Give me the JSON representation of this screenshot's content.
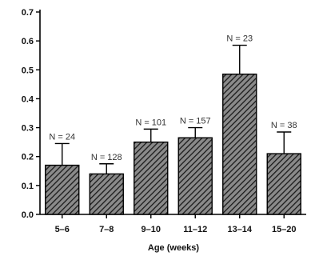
{
  "chart_data": {
    "type": "bar",
    "title": "",
    "xlabel": "Age (weeks)",
    "ylabel": "",
    "ylim": [
      0,
      0.7
    ],
    "yticks": [
      "0.0",
      "0.1",
      "0.2",
      "0.3",
      "0.4",
      "0.5",
      "0.6",
      "0.7"
    ],
    "categories": [
      "5–6",
      "7–8",
      "9–10",
      "11–12",
      "13–14",
      "15–20"
    ],
    "values": [
      0.17,
      0.14,
      0.25,
      0.265,
      0.485,
      0.21
    ],
    "error_upper": [
      0.245,
      0.175,
      0.295,
      0.3,
      0.585,
      0.285
    ],
    "n_labels": [
      "N = 24",
      "N = 128",
      "N = 101",
      "N = 157",
      "N = 23",
      "N = 38"
    ],
    "bar_pattern": "diagonal-hatch",
    "grid": false
  }
}
